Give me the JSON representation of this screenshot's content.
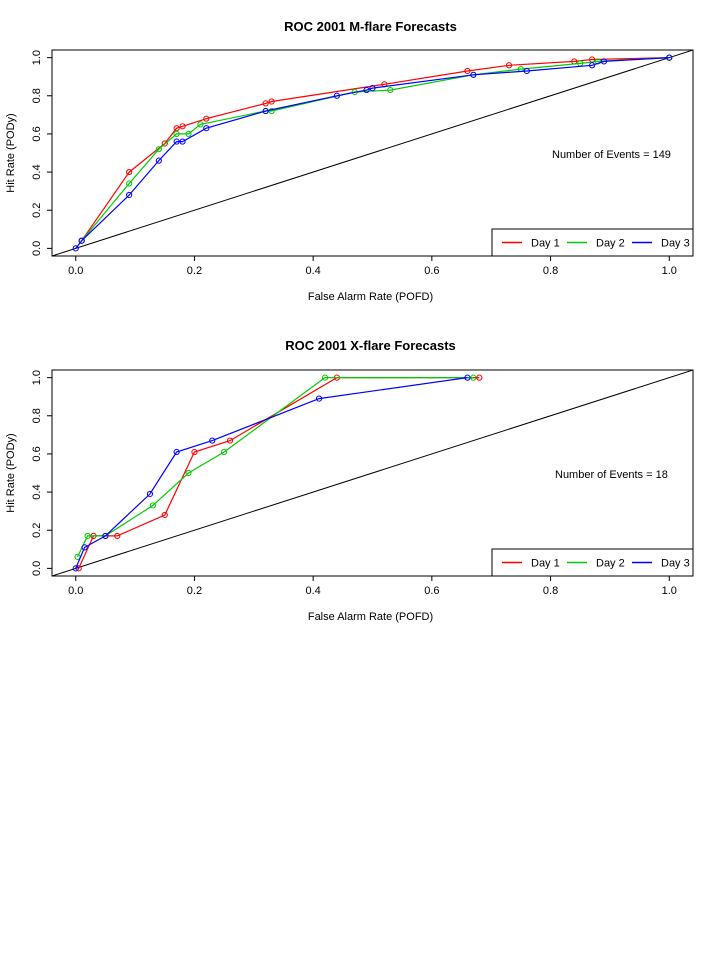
{
  "chart_data": [
    {
      "type": "line",
      "title": "ROC  2001 M-flare Forecasts",
      "xlabel": "False Alarm Rate (POFD)",
      "ylabel": "Hit Rate (PODy)",
      "xlim": [
        0,
        1
      ],
      "ylim": [
        0,
        1
      ],
      "xticks": [
        "0.0",
        "0.2",
        "0.4",
        "0.6",
        "0.8",
        "1.0"
      ],
      "yticks": [
        "0.0",
        "0.2",
        "0.4",
        "0.6",
        "0.8",
        "1.0"
      ],
      "annotation": "Number of Events =  149",
      "legend_position": "bottom-right",
      "diagonal": true,
      "series": [
        {
          "name": "Day 1",
          "color": "#ff0000",
          "x": [
            0.01,
            0.09,
            0.15,
            0.17,
            0.18,
            0.22,
            0.32,
            0.33,
            0.52,
            0.66,
            0.73,
            0.84,
            0.87,
            1.0
          ],
          "y": [
            0.04,
            0.4,
            0.55,
            0.63,
            0.64,
            0.68,
            0.76,
            0.77,
            0.86,
            0.93,
            0.96,
            0.98,
            0.99,
            1.0
          ]
        },
        {
          "name": "Day 2",
          "color": "#00cc00",
          "x": [
            0.01,
            0.09,
            0.14,
            0.17,
            0.19,
            0.21,
            0.32,
            0.33,
            0.47,
            0.53,
            0.67,
            0.75,
            0.85,
            0.88,
            1.0
          ],
          "y": [
            0.04,
            0.34,
            0.52,
            0.6,
            0.6,
            0.65,
            0.72,
            0.72,
            0.82,
            0.83,
            0.91,
            0.94,
            0.97,
            0.98,
            1.0
          ]
        },
        {
          "name": "Day 3",
          "color": "#0000ff",
          "x": [
            0.0,
            0.01,
            0.09,
            0.14,
            0.17,
            0.18,
            0.22,
            0.32,
            0.44,
            0.49,
            0.5,
            0.67,
            0.76,
            0.87,
            0.89,
            1.0
          ],
          "y": [
            0.0,
            0.04,
            0.28,
            0.46,
            0.56,
            0.56,
            0.63,
            0.72,
            0.8,
            0.83,
            0.84,
            0.91,
            0.93,
            0.96,
            0.98,
            1.0
          ]
        }
      ]
    },
    {
      "type": "line",
      "title": "ROC  2001 X-flare Forecasts",
      "xlabel": "False Alarm Rate (POFD)",
      "ylabel": "Hit Rate (PODy)",
      "xlim": [
        0,
        1
      ],
      "ylim": [
        0,
        1
      ],
      "xticks": [
        "0.0",
        "0.2",
        "0.4",
        "0.6",
        "0.8",
        "1.0"
      ],
      "yticks": [
        "0.0",
        "0.2",
        "0.4",
        "0.6",
        "0.8",
        "1.0"
      ],
      "annotation": "Number of Events =  18",
      "legend_position": "bottom-right",
      "diagonal": true,
      "series": [
        {
          "name": "Day 1",
          "color": "#ff0000",
          "x": [
            0.005,
            0.03,
            0.07,
            0.15,
            0.2,
            0.26,
            0.44,
            0.68
          ],
          "y": [
            0.0,
            0.17,
            0.17,
            0.28,
            0.61,
            0.67,
            1.0,
            1.0
          ]
        },
        {
          "name": "Day 2",
          "color": "#00cc00",
          "x": [
            0.003,
            0.02,
            0.05,
            0.13,
            0.19,
            0.25,
            0.42,
            0.67
          ],
          "y": [
            0.06,
            0.17,
            0.17,
            0.33,
            0.5,
            0.61,
            1.0,
            1.0
          ]
        },
        {
          "name": "Day 3",
          "color": "#0000ff",
          "x": [
            0.0,
            0.015,
            0.05,
            0.125,
            0.17,
            0.23,
            0.41,
            0.66
          ],
          "y": [
            0.0,
            0.11,
            0.17,
            0.39,
            0.61,
            0.67,
            0.89,
            1.0
          ]
        }
      ]
    }
  ]
}
